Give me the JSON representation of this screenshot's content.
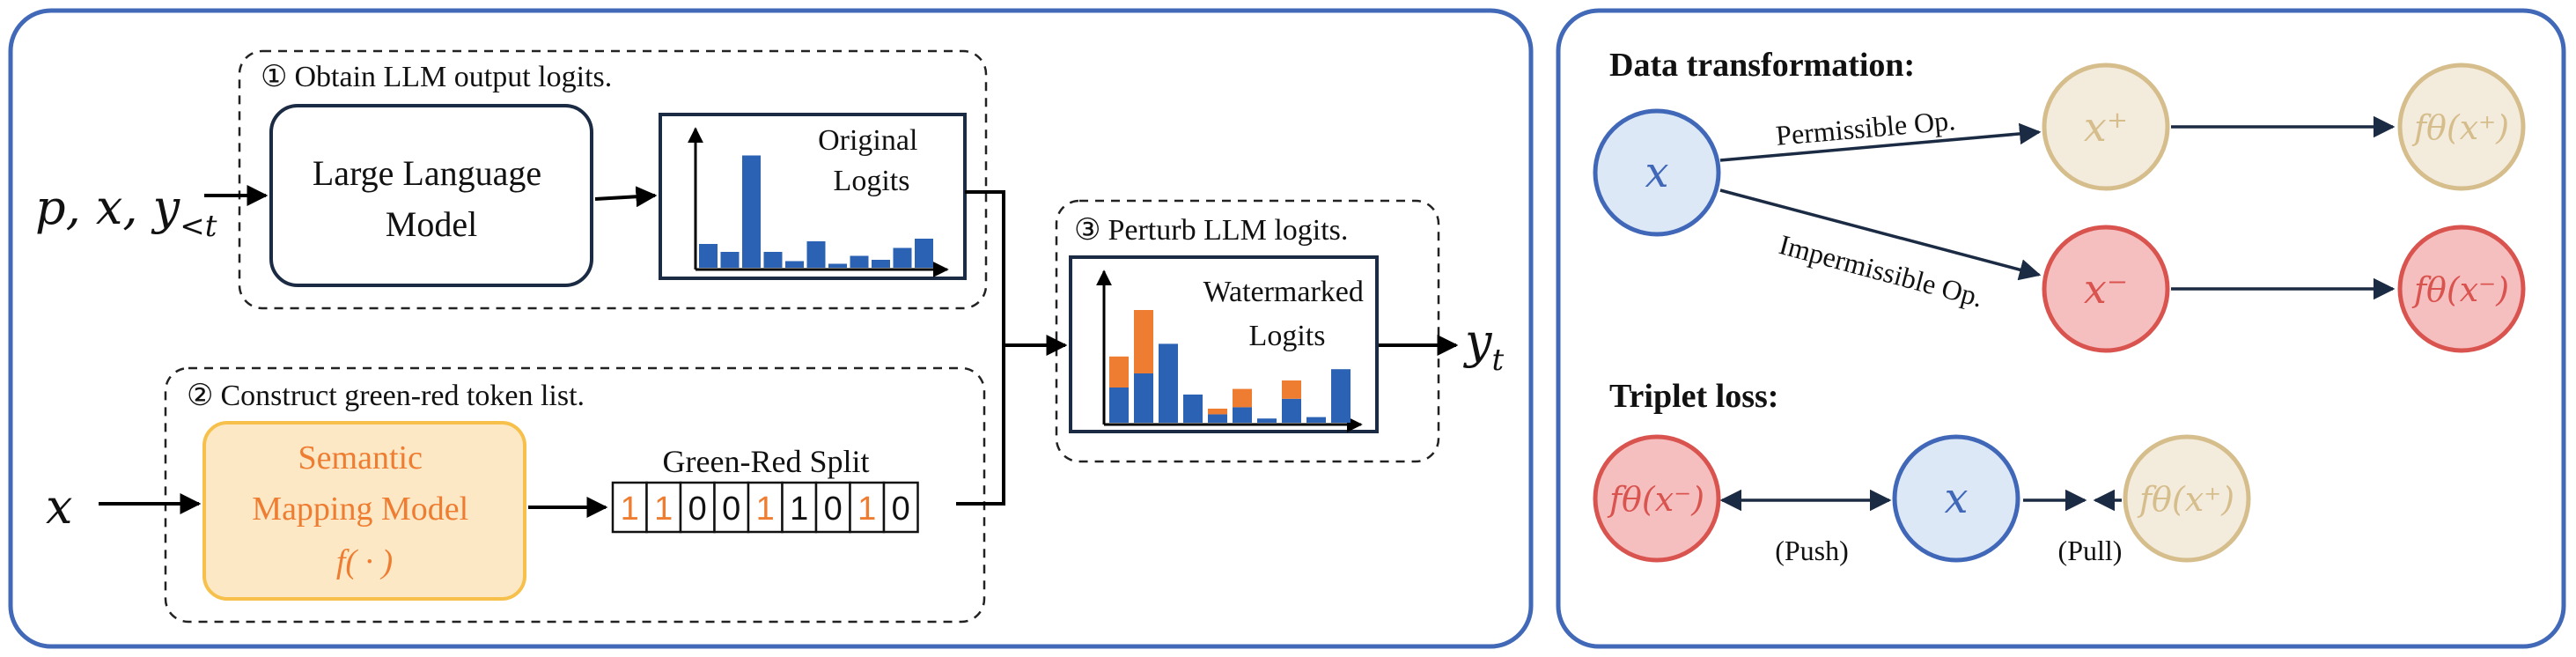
{
  "colors": {
    "panel_border": "#4169b8",
    "green_bar": "#2b62b3",
    "red_bar": "#ee7d31",
    "orange_text": "#ee7d31",
    "mapping_fill": "#fde8c6",
    "mapping_border": "#f6c04a",
    "node_x_fill": "#dde8f6",
    "node_x_border": "#4168b8",
    "node_pos_fill": "#f3ebdc",
    "node_pos_border": "#d6bd8c",
    "node_neg_fill": "#f6bfbf",
    "node_neg_border": "#d9534f",
    "dark": "#1b2b44"
  },
  "left_panel": {
    "step1": {
      "marker": "①",
      "caption": "Obtain LLM output logits."
    },
    "step2": {
      "marker": "②",
      "caption": "Construct green-red token list."
    },
    "step3": {
      "marker": "③",
      "caption": "Perturb LLM logits."
    },
    "input_top": [
      "p, x, y",
      "<t"
    ],
    "input_bottom": "x",
    "output": [
      "y",
      "t"
    ],
    "llm_box": [
      "Large Language",
      "Model"
    ],
    "original_logits": [
      "Original",
      "Logits"
    ],
    "watermarked_logits": [
      "Watermarked",
      "Logits"
    ],
    "mapping_model": [
      "Semantic",
      "Mapping Model",
      "f( · )"
    ],
    "split_title": "Green-Red Split",
    "split_bits": [
      "1",
      "1",
      "0",
      "0",
      "1",
      "1",
      "0",
      "1",
      "0"
    ],
    "split_bit_orange": [
      true,
      true,
      false,
      false,
      true,
      false,
      false,
      true,
      false
    ],
    "original_bars": [
      0.18,
      0.12,
      0.85,
      0.12,
      0.05,
      0.2,
      0.03,
      0.09,
      0.06,
      0.15,
      0.22
    ],
    "watermarked_blue": [
      0.25,
      0.35,
      0.56,
      0.2,
      0.06,
      0.11,
      0.03,
      0.17,
      0.04,
      0.38
    ],
    "watermarked_orange": [
      0.22,
      0.45,
      0.0,
      0.0,
      0.04,
      0.13,
      0.0,
      0.13,
      0.0,
      0.0
    ]
  },
  "right_panel": {
    "data_title": "Data transformation:",
    "triplet_title": "Triplet loss:",
    "permissible": "Permissible Op.",
    "impermissible": "Impermissible Op.",
    "node_x": "x",
    "node_x_pos": "x⁺",
    "node_x_neg": "x⁻",
    "f_pos": "fθ(x⁺)",
    "f_neg": "fθ(x⁻)",
    "push": "(Push)",
    "pull": "(Pull)"
  }
}
